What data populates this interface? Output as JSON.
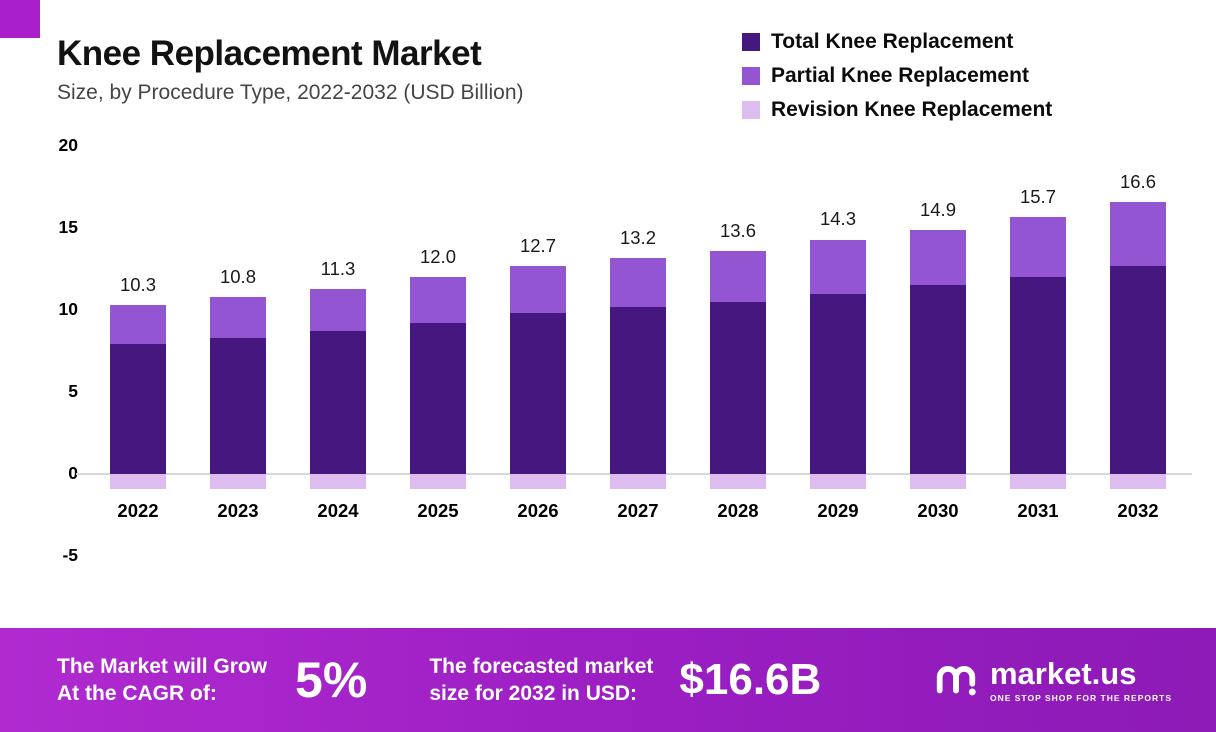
{
  "header": {
    "title": "Knee Replacement Market",
    "subtitle": "Size, by Procedure Type, 2022-2032 (USD Billion)"
  },
  "legend": [
    {
      "label": "Total Knee Replacement",
      "color": "#46187f"
    },
    {
      "label": "Partial Knee Replacement",
      "color": "#9355d2"
    },
    {
      "label": "Revision Knee Replacement",
      "color": "#ddbcf0"
    }
  ],
  "chart_data": {
    "type": "bar",
    "stacked": true,
    "title": "Knee Replacement Market",
    "subtitle": "Size, by Procedure Type, 2022-2032 (USD Billion)",
    "unit": "USD Billion",
    "categories": [
      "2022",
      "2023",
      "2024",
      "2025",
      "2026",
      "2027",
      "2028",
      "2029",
      "2030",
      "2031",
      "2032"
    ],
    "totals": [
      10.3,
      10.8,
      11.3,
      12.0,
      12.7,
      13.2,
      13.6,
      14.3,
      14.9,
      15.7,
      16.6
    ],
    "total_labels": [
      "10.3",
      "10.8",
      "11.3",
      "12.0",
      "12.7",
      "13.2",
      "13.6",
      "14.3",
      "14.9",
      "15.7",
      "16.6"
    ],
    "series": [
      {
        "name": "Total Knee Replacement",
        "color": "#46187f",
        "values": [
          7.9,
          8.3,
          8.7,
          9.2,
          9.8,
          10.2,
          10.5,
          11.0,
          11.5,
          12.0,
          12.7
        ]
      },
      {
        "name": "Partial Knee Replacement",
        "color": "#9355d2",
        "values": [
          2.4,
          2.5,
          2.6,
          2.8,
          2.9,
          3.0,
          3.1,
          3.3,
          3.4,
          3.7,
          3.9
        ]
      },
      {
        "name": "Revision Knee Replacement",
        "color": "#ddbcf0",
        "plotted_below_axis": true,
        "values": [
          0.9,
          0.9,
          0.9,
          0.9,
          0.9,
          0.9,
          0.9,
          0.9,
          0.9,
          0.9,
          0.9
        ]
      }
    ],
    "y_ticks": [
      20,
      15,
      10,
      5,
      0,
      -5
    ],
    "y_tick_labels": [
      "20",
      "15",
      "10",
      "5",
      "0",
      "-5"
    ],
    "ylim": [
      -5,
      20
    ],
    "grid": false,
    "legend_position": "top-right"
  },
  "banner": {
    "cagr_line1": "The Market will Grow",
    "cagr_line2": "At the CAGR of:",
    "cagr_value": "5%",
    "forecast_line1": "The forecasted market",
    "forecast_line2": "size for 2032 in USD:",
    "forecast_value": "$16.6B",
    "logo_text": "market.us",
    "logo_tagline": "ONE STOP SHOP FOR THE REPORTS"
  },
  "colors": {
    "banner_gradient_start": "#b02ad0",
    "banner_gradient_mid": "#9a1ec2",
    "banner_gradient_end": "#8d1ab6",
    "corner_square": "#a91fca",
    "axis_line": "#d8d8d8"
  }
}
